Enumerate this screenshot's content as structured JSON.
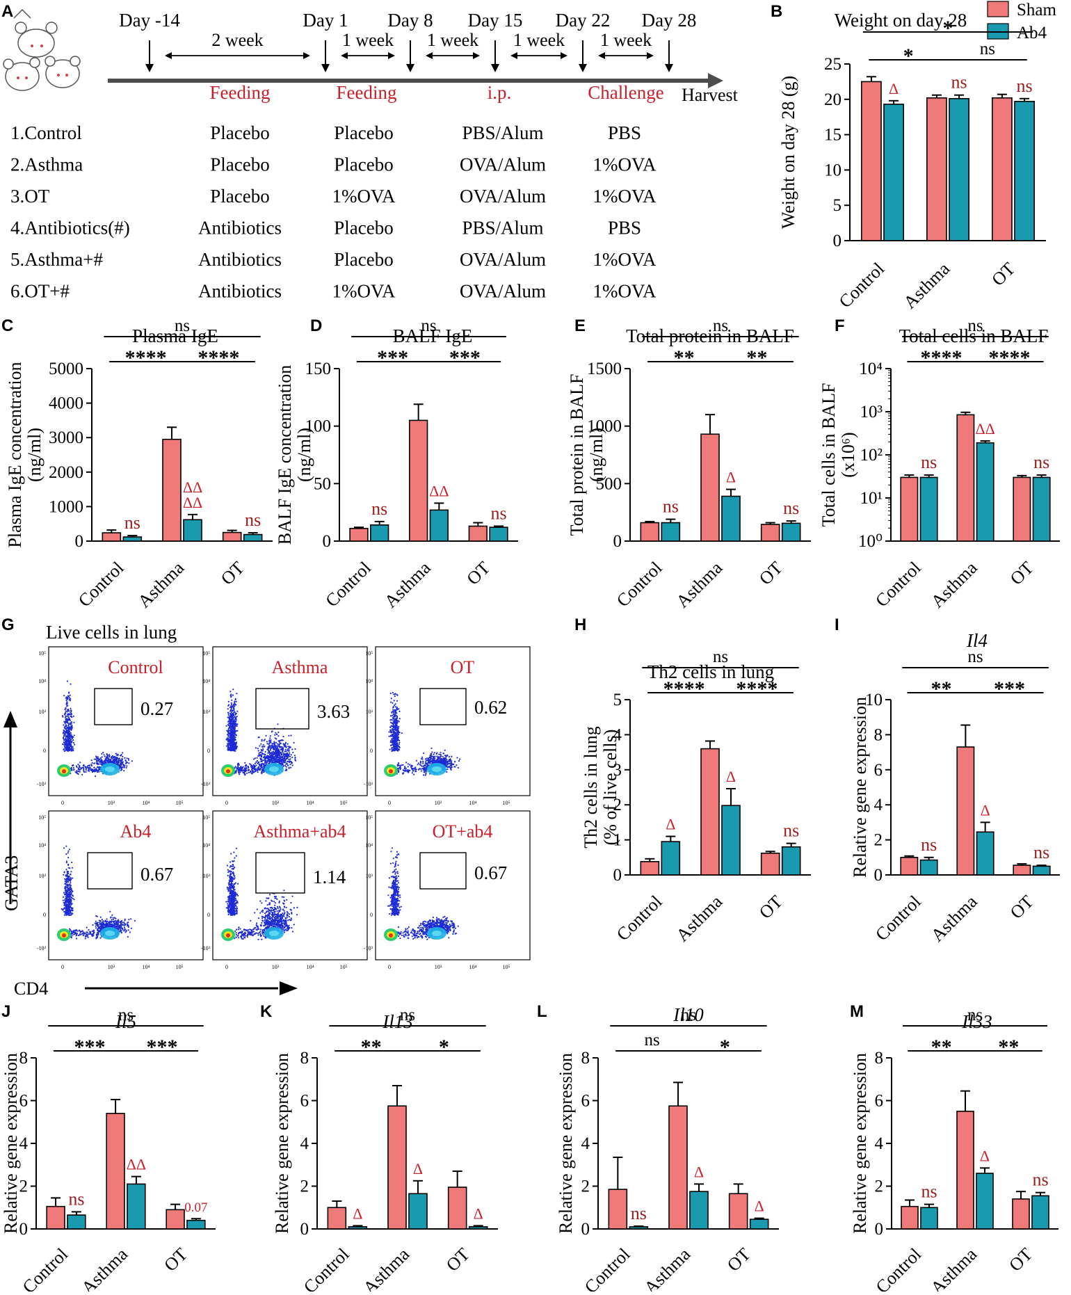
{
  "colors": {
    "sham": "#f07a7a",
    "ab4": "#1a9aae",
    "red_text": "#c8202a",
    "dark_red": "#9b1b1b"
  },
  "panel_a": {
    "letter": "A",
    "days": [
      "Day -14",
      "Day 1",
      "Day 8",
      "Day 15",
      "Day 22",
      "Day 28"
    ],
    "intervals": [
      "2 week",
      "1 week",
      "1 week",
      "1 week",
      "1 week"
    ],
    "stages": [
      "Feeding",
      "Feeding",
      "i.p.",
      "Challenge"
    ],
    "harvest": "Harvest",
    "groups": [
      {
        "name": "1.Control",
        "c1": "Placebo",
        "c2": "Placebo",
        "c3": "PBS/Alum",
        "c4": "PBS"
      },
      {
        "name": "2.Asthma",
        "c1": "Placebo",
        "c2": "Placebo",
        "c3": "OVA/Alum",
        "c4": "1%OVA"
      },
      {
        "name": "3.OT",
        "c1": "Placebo",
        "c2": "1%OVA",
        "c3": "OVA/Alum",
        "c4": "1%OVA"
      },
      {
        "name": "4.Antibiotics(#)",
        "c1": "Antibiotics",
        "c2": "Placebo",
        "c3": "PBS/Alum",
        "c4": "PBS"
      },
      {
        "name": "5.Asthma+#",
        "c1": "Antibiotics",
        "c2": "Placebo",
        "c3": "OVA/Alum",
        "c4": "1%OVA"
      },
      {
        "name": "6.OT+#",
        "c1": "Antibiotics",
        "c2": "1%OVA",
        "c3": "OVA/Alum",
        "c4": "1%OVA"
      }
    ]
  },
  "legend": {
    "sham": "Sham",
    "ab4": "Ab4"
  },
  "panel_g": {
    "letter": "G",
    "title": "Live cells in lung",
    "ylabel": "GATA3",
    "xlabel": "CD4",
    "x_ticks": [
      "0",
      "10³",
      "10⁴",
      "10⁵"
    ],
    "y_ticks": [
      "10⁵",
      "10⁴",
      "10³",
      "0",
      "-10³"
    ],
    "plots": [
      {
        "label": "Control",
        "value": "0.27"
      },
      {
        "label": "Asthma",
        "value": "3.63"
      },
      {
        "label": "OT",
        "value": "0.62"
      },
      {
        "label": "Ab4",
        "value": "0.67"
      },
      {
        "label": "Asthma+ab4",
        "value": "1.14"
      },
      {
        "label": "OT+ab4",
        "value": "0.67"
      }
    ]
  },
  "chart_data": [
    {
      "id": "B",
      "type": "bar",
      "letter": "B",
      "title": "Weight on day 28",
      "ylabel": "Weight on day 28 (g)",
      "categories": [
        "Control",
        "Asthma",
        "OT"
      ],
      "ylim": [
        0,
        25
      ],
      "ticks": [
        "0",
        "5",
        "10",
        "15",
        "20",
        "25"
      ],
      "series": [
        {
          "name": "Sham",
          "values": [
            22.5,
            20.2,
            20.2
          ],
          "errors": [
            0.7,
            0.4,
            0.5
          ]
        },
        {
          "name": "Ab4",
          "values": [
            19.3,
            20.1,
            19.7
          ],
          "errors": [
            0.5,
            0.5,
            0.4
          ]
        }
      ],
      "marks": [
        "Δ",
        "ns",
        "ns"
      ],
      "sig": [
        {
          "label": "*",
          "from": 0,
          "to": 1,
          "level": 1
        },
        {
          "label": "ns",
          "from": 1,
          "to": 2,
          "level": 1
        },
        {
          "label": "*",
          "from": 0,
          "to": 2,
          "level": 2
        }
      ]
    },
    {
      "id": "C",
      "type": "bar",
      "letter": "C",
      "title": "Plasma IgE",
      "ylabel": "Plasma IgE concentration",
      "ylabel2": "(ng/ml)",
      "categories": [
        "Control",
        "Asthma",
        "OT"
      ],
      "ylim": [
        0,
        5000
      ],
      "ticks": [
        "0",
        "1000",
        "2000",
        "3000",
        "4000",
        "5000"
      ],
      "series": [
        {
          "name": "Sham",
          "values": [
            240,
            2950,
            250
          ],
          "errors": [
            80,
            350,
            60
          ]
        },
        {
          "name": "Ab4",
          "values": [
            120,
            620,
            190
          ],
          "errors": [
            40,
            150,
            50
          ]
        }
      ],
      "marks": [
        "ns",
        "ΔΔ\nΔΔ",
        "ns"
      ],
      "sig": [
        {
          "label": "****",
          "from": 0,
          "to": 1,
          "level": 1
        },
        {
          "label": "****",
          "from": 1,
          "to": 2,
          "level": 1
        },
        {
          "label": "ns",
          "from": 0,
          "to": 2,
          "level": 2
        }
      ]
    },
    {
      "id": "D",
      "type": "bar",
      "letter": "D",
      "title": "BALF IgE",
      "ylabel": "BALF IgE concentration",
      "ylabel2": "(ng/ml)",
      "categories": [
        "Control",
        "Asthma",
        "OT"
      ],
      "ylim": [
        0,
        150
      ],
      "ticks": [
        "0",
        "50",
        "100",
        "150"
      ],
      "series": [
        {
          "name": "Sham",
          "values": [
            11,
            105,
            13
          ],
          "errors": [
            1,
            14,
            3
          ]
        },
        {
          "name": "Ab4",
          "values": [
            14,
            27,
            12
          ],
          "errors": [
            3,
            6,
            1
          ]
        }
      ],
      "marks": [
        "ns",
        "ΔΔ",
        "ns"
      ],
      "sig": [
        {
          "label": "***",
          "from": 0,
          "to": 1,
          "level": 1
        },
        {
          "label": "***",
          "from": 1,
          "to": 2,
          "level": 1
        },
        {
          "label": "ns",
          "from": 0,
          "to": 2,
          "level": 2
        }
      ]
    },
    {
      "id": "E",
      "type": "bar",
      "letter": "E",
      "title": "Total protein in BALF",
      "ylabel": "Total protein in BALF",
      "ylabel2": "(ng/ml)",
      "categories": [
        "Control",
        "Asthma",
        "OT"
      ],
      "ylim": [
        0,
        1500
      ],
      "ticks": [
        "0",
        "500",
        "1000",
        "1500"
      ],
      "series": [
        {
          "name": "Sham",
          "values": [
            160,
            930,
            145
          ],
          "errors": [
            10,
            170,
            15
          ]
        },
        {
          "name": "Ab4",
          "values": [
            160,
            390,
            155
          ],
          "errors": [
            30,
            60,
            20
          ]
        }
      ],
      "marks": [
        "ns",
        "Δ",
        "ns"
      ],
      "sig": [
        {
          "label": "**",
          "from": 0,
          "to": 1,
          "level": 1
        },
        {
          "label": "**",
          "from": 1,
          "to": 2,
          "level": 1
        },
        {
          "label": "ns",
          "from": 0,
          "to": 2,
          "level": 2
        }
      ]
    },
    {
      "id": "F",
      "type": "bar",
      "scale": "log",
      "letter": "F",
      "title": "Total cells in BALF",
      "ylabel": "Total cells in BALF",
      "ylabel2": "(x10⁶)",
      "categories": [
        "Control",
        "Asthma",
        "OT"
      ],
      "ylim": [
        1,
        10000
      ],
      "ticks": [
        "10⁰",
        "10¹",
        "10²",
        "10³",
        "10⁴"
      ],
      "series": [
        {
          "name": "Sham",
          "values": [
            30,
            850,
            30
          ],
          "errors": [
            4,
            120,
            3
          ]
        },
        {
          "name": "Ab4",
          "values": [
            30,
            190,
            30
          ],
          "errors": [
            4,
            20,
            4
          ]
        }
      ],
      "marks": [
        "ns",
        "ΔΔ",
        "ns"
      ],
      "sig": [
        {
          "label": "****",
          "from": 0,
          "to": 1,
          "level": 1
        },
        {
          "label": "****",
          "from": 1,
          "to": 2,
          "level": 1
        },
        {
          "label": "ns",
          "from": 0,
          "to": 2,
          "level": 2
        }
      ]
    },
    {
      "id": "H",
      "type": "bar",
      "letter": "H",
      "title": "Th2 cells in lung",
      "ylabel": "Th2 cells in lung",
      "ylabel2": "(% of live cells)",
      "categories": [
        "Control",
        "Asthma",
        "OT"
      ],
      "ylim": [
        0,
        5
      ],
      "ticks": [
        "0",
        "1",
        "2",
        "3",
        "4",
        "5"
      ],
      "series": [
        {
          "name": "Sham",
          "values": [
            0.38,
            3.6,
            0.62
          ],
          "errors": [
            0.08,
            0.22,
            0.05
          ]
        },
        {
          "name": "Ab4",
          "values": [
            0.95,
            1.98,
            0.8
          ],
          "errors": [
            0.15,
            0.48,
            0.1
          ]
        }
      ],
      "marks": [
        "Δ",
        "Δ",
        "ns"
      ],
      "sig": [
        {
          "label": "****",
          "from": 0,
          "to": 1,
          "level": 1
        },
        {
          "label": "****",
          "from": 1,
          "to": 2,
          "level": 1
        },
        {
          "label": "ns",
          "from": 0,
          "to": 2,
          "level": 2
        }
      ]
    },
    {
      "id": "I",
      "type": "bar",
      "letter": "I",
      "title": "Il4",
      "italic": true,
      "ylabel": "Relative gene expression",
      "categories": [
        "Control",
        "Asthma",
        "OT"
      ],
      "ylim": [
        0,
        10
      ],
      "ticks": [
        "0",
        "2",
        "4",
        "6",
        "8",
        "10"
      ],
      "series": [
        {
          "name": "Sham",
          "values": [
            1.0,
            7.3,
            0.55
          ],
          "errors": [
            0.08,
            1.25,
            0.08
          ]
        },
        {
          "name": "Ab4",
          "values": [
            0.85,
            2.45,
            0.5
          ],
          "errors": [
            0.15,
            0.55,
            0.05
          ]
        }
      ],
      "marks": [
        "ns",
        "Δ",
        "ns"
      ],
      "sig": [
        {
          "label": "**",
          "from": 0,
          "to": 1,
          "level": 1
        },
        {
          "label": "***",
          "from": 1,
          "to": 2,
          "level": 1
        },
        {
          "label": "ns",
          "from": 0,
          "to": 2,
          "level": 2
        }
      ]
    },
    {
      "id": "J",
      "type": "bar",
      "letter": "J",
      "title": "Il5",
      "italic": true,
      "ylabel": "Relative gene expression",
      "categories": [
        "Control",
        "Asthma",
        "OT"
      ],
      "ylim": [
        0,
        8
      ],
      "ticks": [
        "0",
        "2",
        "4",
        "6",
        "8"
      ],
      "series": [
        {
          "name": "Sham",
          "values": [
            1.05,
            5.4,
            0.9
          ],
          "errors": [
            0.4,
            0.65,
            0.25
          ]
        },
        {
          "name": "Ab4",
          "values": [
            0.65,
            2.1,
            0.4
          ],
          "errors": [
            0.15,
            0.35,
            0.08
          ]
        }
      ],
      "marks": [
        "ns",
        "ΔΔ",
        "0.07"
      ],
      "sig": [
        {
          "label": "***",
          "from": 0,
          "to": 1,
          "level": 1
        },
        {
          "label": "***",
          "from": 1,
          "to": 2,
          "level": 1
        },
        {
          "label": "ns",
          "from": 0,
          "to": 2,
          "level": 2
        }
      ]
    },
    {
      "id": "K",
      "type": "bar",
      "letter": "K",
      "title": "Il13",
      "italic": true,
      "ylabel": "Relative gene expression",
      "categories": [
        "Control",
        "Asthma",
        "OT"
      ],
      "ylim": [
        0,
        8
      ],
      "ticks": [
        "0",
        "2",
        "4",
        "6",
        "8"
      ],
      "series": [
        {
          "name": "Sham",
          "values": [
            1.0,
            5.75,
            1.95
          ],
          "errors": [
            0.3,
            0.95,
            0.75
          ]
        },
        {
          "name": "Ab4",
          "values": [
            0.1,
            1.65,
            0.1
          ],
          "errors": [
            0.05,
            0.6,
            0.05
          ]
        }
      ],
      "marks": [
        "Δ",
        "Δ",
        "Δ"
      ],
      "sig": [
        {
          "label": "**",
          "from": 0,
          "to": 1,
          "level": 1
        },
        {
          "label": "*",
          "from": 1,
          "to": 2,
          "level": 1
        },
        {
          "label": "ns",
          "from": 0,
          "to": 2,
          "level": 2
        }
      ]
    },
    {
      "id": "L",
      "type": "bar",
      "letter": "L",
      "title": "Il10",
      "italic": true,
      "ylabel": "Relative gene expression",
      "categories": [
        "Control",
        "Asthma",
        "OT"
      ],
      "ylim": [
        0,
        8
      ],
      "ticks": [
        "0",
        "2",
        "4",
        "6",
        "8"
      ],
      "series": [
        {
          "name": "Sham",
          "values": [
            1.85,
            5.75,
            1.65
          ],
          "errors": [
            1.5,
            1.1,
            0.45
          ]
        },
        {
          "name": "Ab4",
          "values": [
            0.1,
            1.75,
            0.45
          ],
          "errors": [
            0.03,
            0.35,
            0.05
          ]
        }
      ],
      "marks": [
        "ns",
        "Δ",
        "Δ"
      ],
      "sig": [
        {
          "label": "ns",
          "from": 0,
          "to": 1,
          "level": 1
        },
        {
          "label": "*",
          "from": 1,
          "to": 2,
          "level": 1
        },
        {
          "label": "ns",
          "from": 0,
          "to": 2,
          "level": 2
        }
      ]
    },
    {
      "id": "M",
      "type": "bar",
      "letter": "M",
      "title": "Il33",
      "italic": true,
      "ylabel": "Relative gene expression",
      "categories": [
        "Control",
        "Asthma",
        "OT"
      ],
      "ylim": [
        0,
        8
      ],
      "ticks": [
        "0",
        "2",
        "4",
        "6",
        "8"
      ],
      "series": [
        {
          "name": "Sham",
          "values": [
            1.05,
            5.5,
            1.4
          ],
          "errors": [
            0.3,
            0.95,
            0.35
          ]
        },
        {
          "name": "Ab4",
          "values": [
            1.0,
            2.6,
            1.55
          ],
          "errors": [
            0.15,
            0.25,
            0.15
          ]
        }
      ],
      "marks": [
        "ns",
        "Δ",
        "ns"
      ],
      "sig": [
        {
          "label": "**",
          "from": 0,
          "to": 1,
          "level": 1
        },
        {
          "label": "**",
          "from": 1,
          "to": 2,
          "level": 1
        },
        {
          "label": "ns",
          "from": 0,
          "to": 2,
          "level": 2
        }
      ]
    }
  ]
}
